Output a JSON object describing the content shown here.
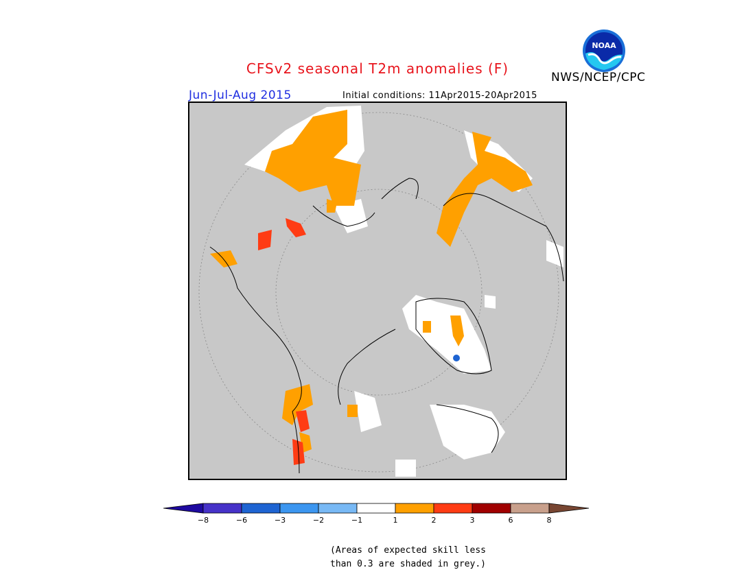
{
  "title": "CFSv2 seasonal T2m anomalies (F)",
  "period": "Jun-Jul-Aug 2015",
  "initial_conditions": "Initial conditions: 11Apr2015-20Apr2015",
  "agency": "NWS/NCEP/CPC",
  "logo_text": "NOAA",
  "note_line1": "(Areas of expected skill less",
  "note_line2": "than 0.3 are shaded in grey.)",
  "colors": {
    "title": "#e8141c",
    "period": "#1f2ee0",
    "no_skill_grey": "#c8c8c8",
    "neutral_white": "#ffffff",
    "warm_1_2": "#ffa000",
    "warm_2_3": "#ff3c14",
    "cool_above_min8": "#3c14cc"
  },
  "legend": {
    "ticks": [
      "−8",
      "−6",
      "−3",
      "−2",
      "−1",
      "1",
      "2",
      "3",
      "6",
      "8"
    ],
    "bins": [
      {
        "color": "#1e0aa0"
      },
      {
        "color": "#4632c8"
      },
      {
        "color": "#1e64d2"
      },
      {
        "color": "#3c96f0"
      },
      {
        "color": "#78b9f5"
      },
      {
        "color": "#ffffff"
      },
      {
        "color": "#ffa000"
      },
      {
        "color": "#ff3c14"
      },
      {
        "color": "#a00000"
      },
      {
        "color": "#c8a08c"
      },
      {
        "color": "#784632"
      }
    ]
  }
}
